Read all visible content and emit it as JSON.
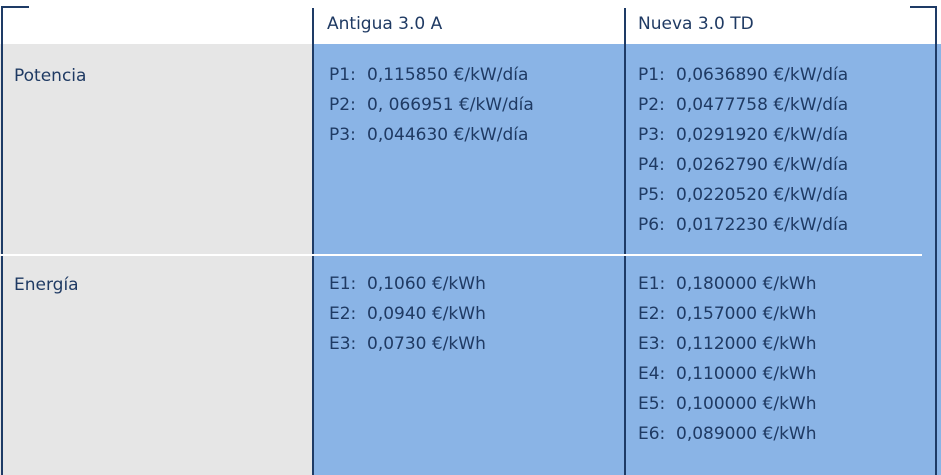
{
  "headers": {
    "old": "Antigua 3.0 A",
    "new": "Nueva 3.0 TD"
  },
  "rows": {
    "potencia": {
      "label": "Potencia",
      "old": [
        {
          "key": "P1:",
          "value": "0,115850 €/kW/día"
        },
        {
          "key": "P2:",
          "value": "0, 066951 €/kW/día"
        },
        {
          "key": "P3:",
          "value": "0,044630 €/kW/día"
        }
      ],
      "new": [
        {
          "key": "P1:",
          "value": "0,0636890 €/kW/día"
        },
        {
          "key": "P2:",
          "value": "0,0477758 €/kW/día"
        },
        {
          "key": "P3:",
          "value": "0,0291920 €/kW/día"
        },
        {
          "key": "P4:",
          "value": "0,0262790 €/kW/día"
        },
        {
          "key": "P5:",
          "value": "0,0220520 €/kW/día"
        },
        {
          "key": "P6:",
          "value": "0,0172230 €/kW/día"
        }
      ]
    },
    "energia": {
      "label": "Energía",
      "old": [
        {
          "key": "E1:",
          "value": "0,1060 €/kWh"
        },
        {
          "key": "E2:",
          "value": "0,0940 €/kWh"
        },
        {
          "key": "E3:",
          "value": "0,0730 €/kWh"
        }
      ],
      "new": [
        {
          "key": "E1:",
          "value": "0,180000 €/kWh"
        },
        {
          "key": "E2:",
          "value": "0,157000 €/kWh"
        },
        {
          "key": "E3:",
          "value": "0,112000 €/kWh"
        },
        {
          "key": "E4:",
          "value": "0,110000 €/kWh"
        },
        {
          "key": "E5:",
          "value": "0,100000 €/kWh"
        },
        {
          "key": "E6:",
          "value": "0,089000 €/kWh"
        }
      ]
    }
  },
  "colors": {
    "accent_blue": "#8ab4e6",
    "label_gray": "#e6e6e6",
    "line_navy": "#1e3b66",
    "text": "#1f3a63"
  }
}
